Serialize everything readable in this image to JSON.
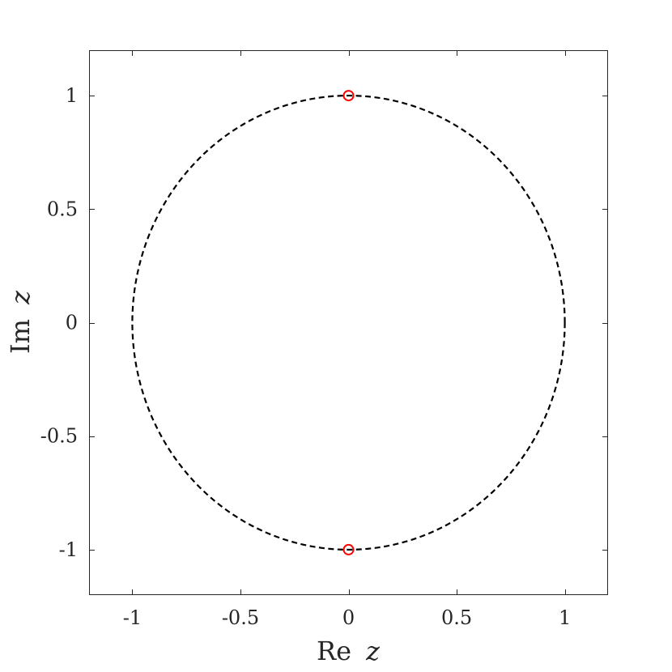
{
  "chart_data": {
    "type": "scatter",
    "title": "",
    "xlabel": {
      "prefix": "Re",
      "variable": "z"
    },
    "ylabel": {
      "prefix": "Im",
      "variable": "z"
    },
    "xlim": [
      -1.2,
      1.2
    ],
    "ylim": [
      -1.2,
      1.2
    ],
    "xticks": [
      -1,
      -0.5,
      0,
      0.5,
      1
    ],
    "yticks": [
      1,
      0.5,
      0,
      -0.5,
      -1
    ],
    "xtick_labels": [
      "-1",
      "-0.5",
      "0",
      "0.5",
      "1"
    ],
    "ytick_labels": [
      "1",
      "0.5",
      "0",
      "-0.5",
      "-1"
    ],
    "grid": false,
    "box": true,
    "series": [
      {
        "kind": "circle-curve",
        "center": [
          0,
          0
        ],
        "radius": 1,
        "line_style": "dashed",
        "color": "#000000"
      },
      {
        "kind": "markers",
        "marker": "open-circle",
        "color": "#ff0000",
        "points": [
          {
            "x": 0,
            "y": 1
          },
          {
            "x": 0,
            "y": -1
          }
        ]
      }
    ]
  }
}
